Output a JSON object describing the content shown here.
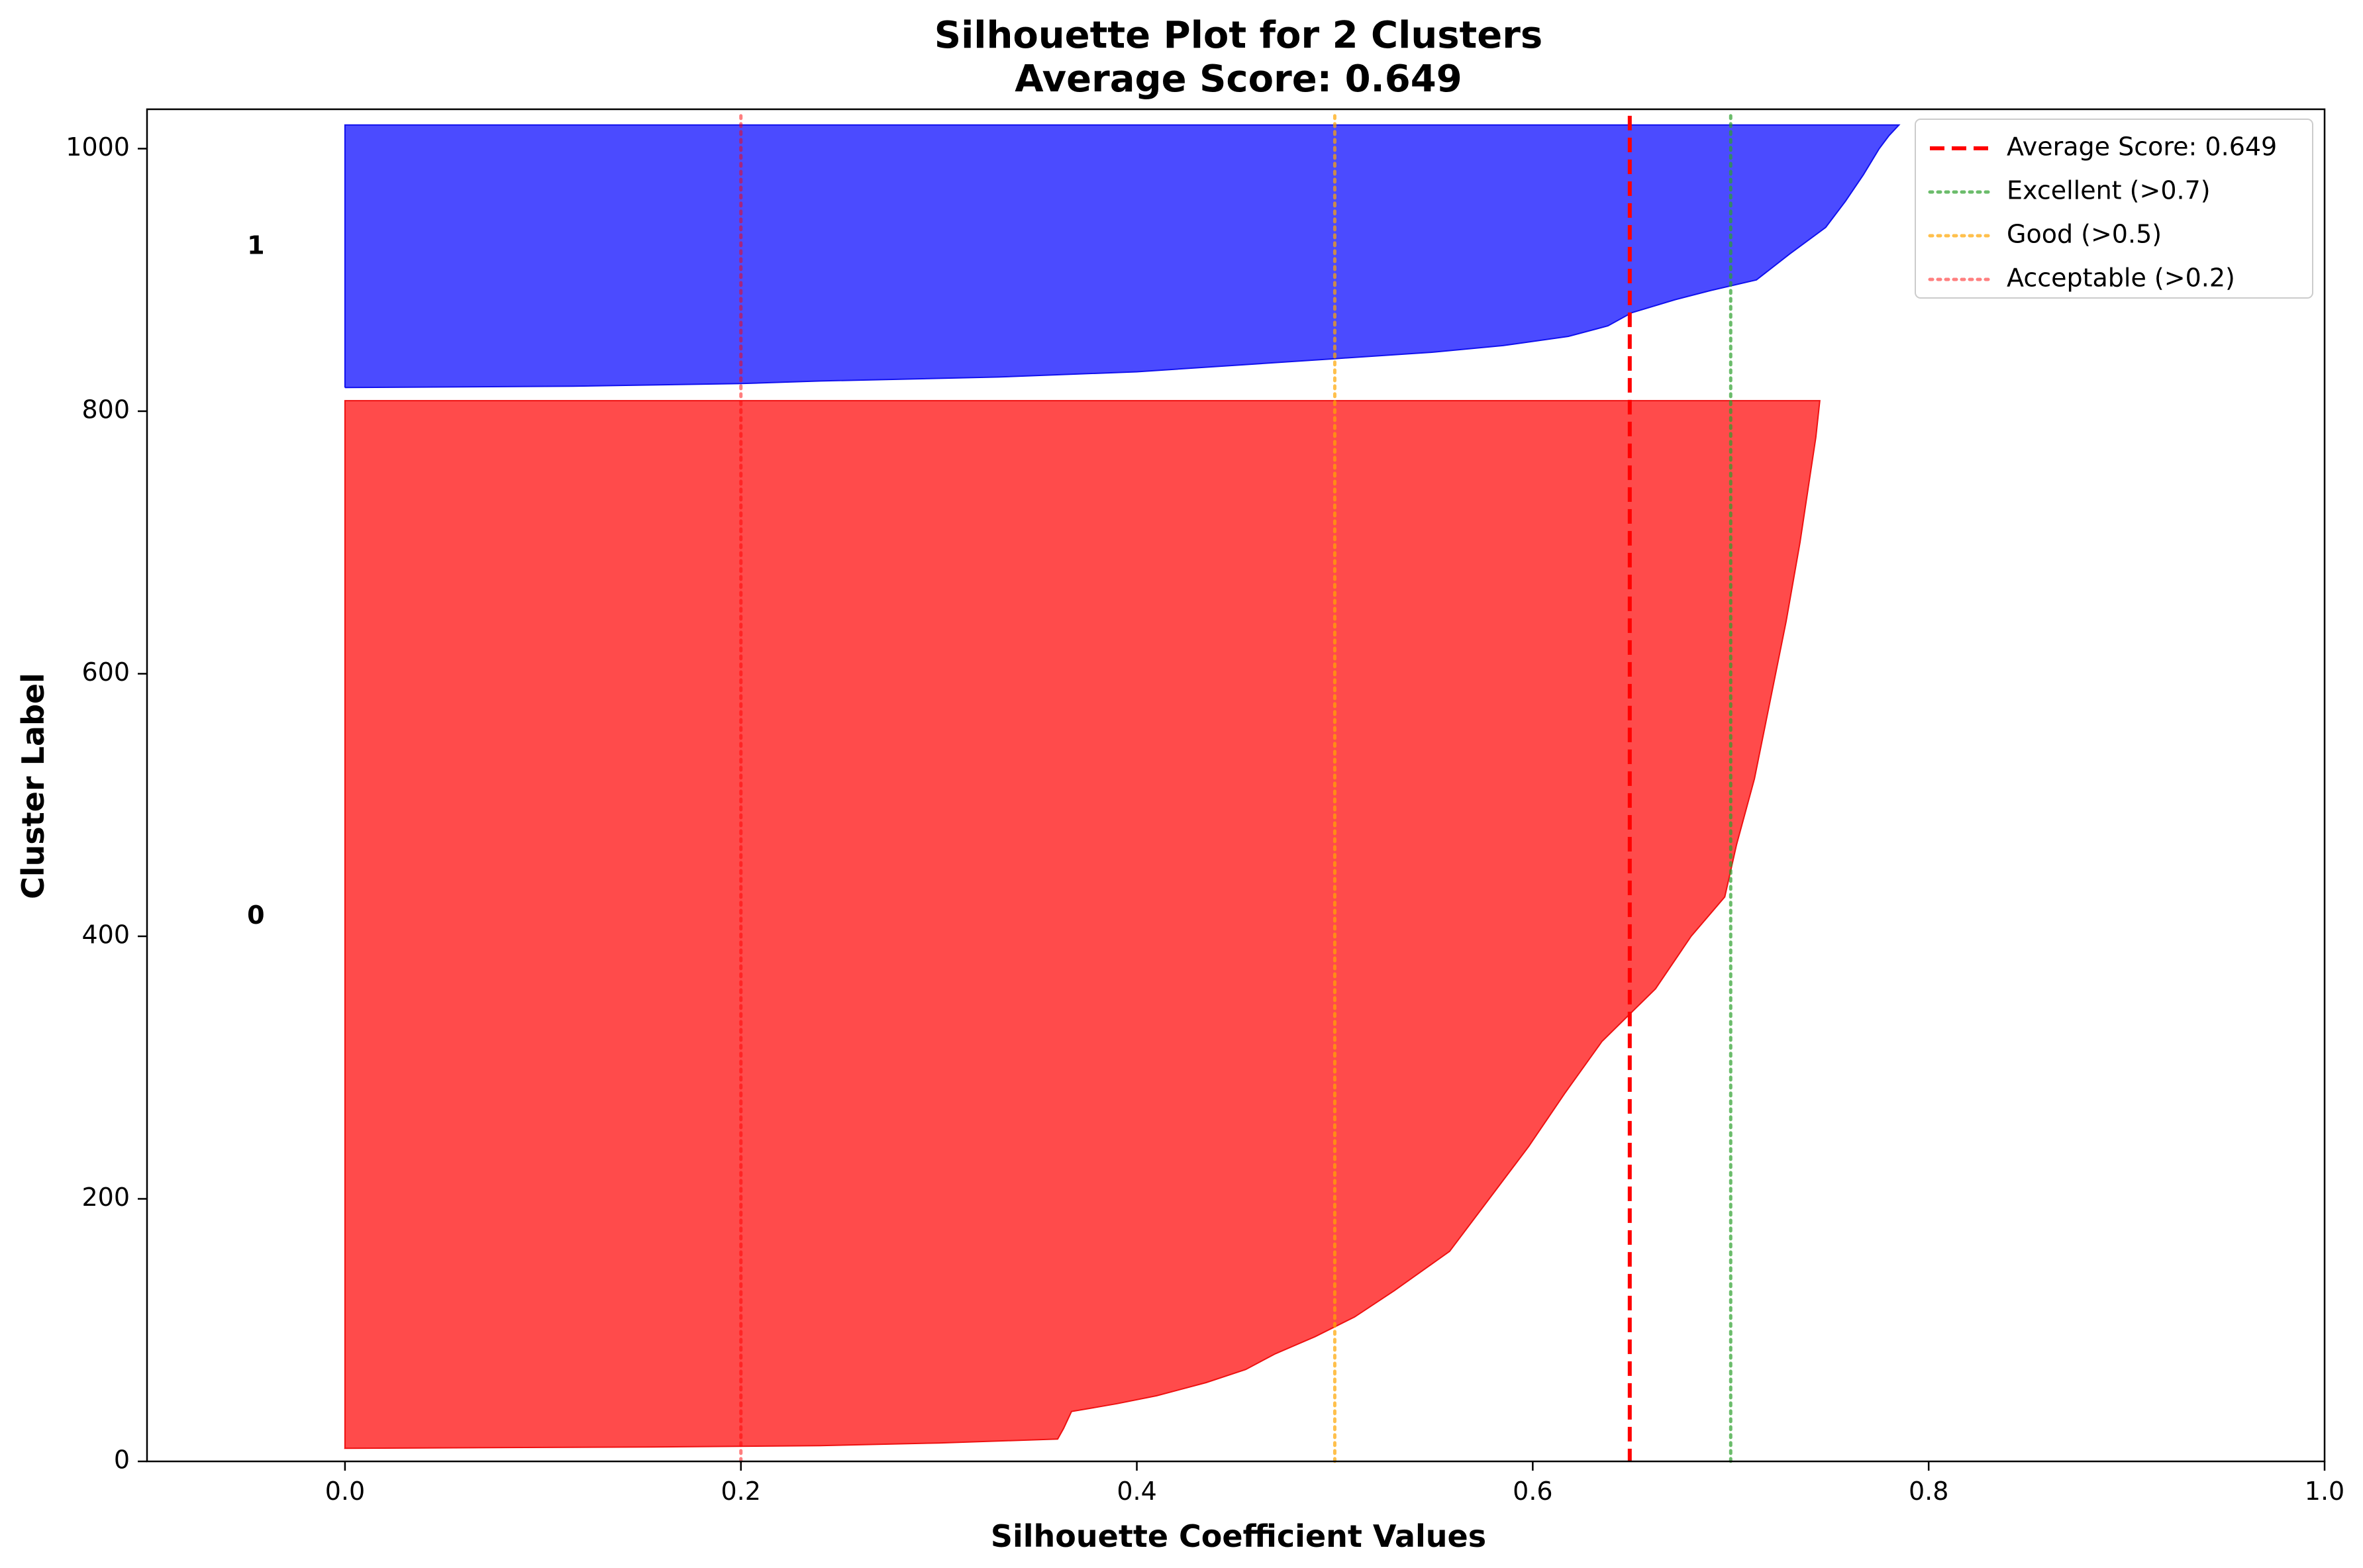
{
  "chart_data": {
    "type": "area",
    "title": "Silhouette Plot for 2 Clusters",
    "subtitle": "Average Score: 0.649",
    "xlabel": "Silhouette Coefficient Values",
    "ylabel": "Cluster Label",
    "xlim": [
      -0.1,
      1.0
    ],
    "ylim": [
      0,
      1030
    ],
    "x_ticks": [
      "0.0",
      "0.2",
      "0.4",
      "0.6",
      "0.8",
      "1.0"
    ],
    "x_tick_values": [
      0.0,
      0.2,
      0.4,
      0.6,
      0.8,
      1.0
    ],
    "y_ticks": [
      "0",
      "200",
      "400",
      "600",
      "800",
      "1000"
    ],
    "y_tick_values": [
      0,
      200,
      400,
      600,
      800,
      1000
    ],
    "grid": false,
    "legend_position": "top-right",
    "series": [
      {
        "name": "0",
        "label": "0",
        "label_y": 415,
        "color": "#ff4b4b",
        "edge_color": "#e11",
        "y_start": 10,
        "y_end": 808,
        "profile": [
          [
            10,
            0.0
          ],
          [
            11,
            0.155
          ],
          [
            12,
            0.24
          ],
          [
            14,
            0.3
          ],
          [
            17,
            0.36
          ],
          [
            25,
            0.363
          ],
          [
            38,
            0.367
          ],
          [
            44,
            0.39
          ],
          [
            50,
            0.41
          ],
          [
            60,
            0.435
          ],
          [
            70,
            0.455
          ],
          [
            82,
            0.47
          ],
          [
            95,
            0.49
          ],
          [
            110,
            0.51
          ],
          [
            130,
            0.53
          ],
          [
            160,
            0.558
          ],
          [
            200,
            0.578
          ],
          [
            240,
            0.598
          ],
          [
            280,
            0.616
          ],
          [
            320,
            0.635
          ],
          [
            360,
            0.662
          ],
          [
            400,
            0.68
          ],
          [
            430,
            0.697
          ],
          [
            470,
            0.703
          ],
          [
            520,
            0.712
          ],
          [
            580,
            0.72
          ],
          [
            640,
            0.728
          ],
          [
            700,
            0.735
          ],
          [
            750,
            0.74
          ],
          [
            780,
            0.743
          ],
          [
            808,
            0.745
          ]
        ]
      },
      {
        "name": "1",
        "label": "1",
        "label_y": 925,
        "color": "#4b4bff",
        "edge_color": "#11e",
        "y_start": 818,
        "y_end": 1018,
        "profile": [
          [
            818,
            0.0
          ],
          [
            819,
            0.115
          ],
          [
            821,
            0.2
          ],
          [
            823,
            0.24
          ],
          [
            826,
            0.33
          ],
          [
            830,
            0.4
          ],
          [
            835,
            0.45
          ],
          [
            840,
            0.5
          ],
          [
            845,
            0.55
          ],
          [
            850,
            0.585
          ],
          [
            857,
            0.618
          ],
          [
            865,
            0.638
          ],
          [
            875,
            0.65
          ],
          [
            885,
            0.672
          ],
          [
            892,
            0.69
          ],
          [
            900,
            0.713
          ],
          [
            920,
            0.73
          ],
          [
            940,
            0.748
          ],
          [
            960,
            0.758
          ],
          [
            980,
            0.767
          ],
          [
            1000,
            0.775
          ],
          [
            1010,
            0.78
          ],
          [
            1018,
            0.785
          ]
        ]
      }
    ],
    "reference_lines": [
      {
        "name": "Average Score: 0.649",
        "x": 0.649,
        "style": "dashed",
        "color": "#ff0000",
        "opacity": 1.0
      },
      {
        "name": "Excellent (>0.7)",
        "x": 0.7,
        "style": "dotted",
        "color": "#2ca02c",
        "opacity": 0.7
      },
      {
        "name": "Good (>0.5)",
        "x": 0.5,
        "style": "dotted",
        "color": "#ffa500",
        "opacity": 0.7
      },
      {
        "name": "Acceptable (>0.2)",
        "x": 0.2,
        "style": "dotted",
        "color": "#ff0000",
        "opacity": 0.5
      }
    ]
  }
}
